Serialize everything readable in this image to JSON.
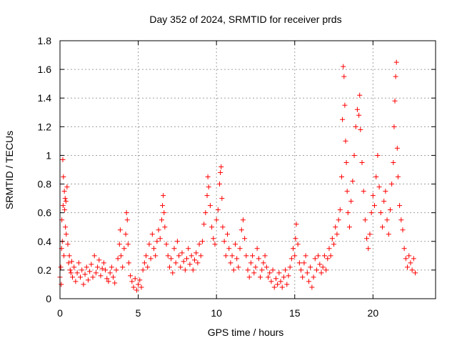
{
  "chart_data": {
    "type": "scatter",
    "title": "Day 352 of 2024, SRMTID for receiver prds",
    "xlabel": "GPS time / hours",
    "ylabel": "SRMTID / TECUs",
    "xlim": [
      0,
      24
    ],
    "ylim": [
      0,
      1.8
    ],
    "xticks": [
      0,
      5,
      10,
      15,
      20
    ],
    "xtick_labels": [
      "0",
      "5",
      "10",
      "15",
      "20"
    ],
    "yticks": [
      0,
      0.2,
      0.4,
      0.6,
      0.8,
      1.0,
      1.2,
      1.4,
      1.6,
      1.8
    ],
    "ytick_labels": [
      "0",
      "0.2",
      "0.4",
      "0.6",
      "0.8",
      "1",
      "1.2",
      "1.4",
      "1.6",
      "1.8"
    ],
    "grid": true,
    "marker": "+",
    "color": "#ff0000",
    "series": [
      {
        "name": "SRMTID",
        "points": [
          [
            0.0,
            0.15
          ],
          [
            0.05,
            0.22
          ],
          [
            0.08,
            0.1
          ],
          [
            0.1,
            0.35
          ],
          [
            0.12,
            0.55
          ],
          [
            0.15,
            0.4
          ],
          [
            0.18,
            0.97
          ],
          [
            0.2,
            0.65
          ],
          [
            0.22,
            0.85
          ],
          [
            0.25,
            0.3
          ],
          [
            0.28,
            0.75
          ],
          [
            0.3,
            0.62
          ],
          [
            0.33,
            0.7
          ],
          [
            0.35,
            0.5
          ],
          [
            0.38,
            0.68
          ],
          [
            0.4,
            0.45
          ],
          [
            0.45,
            0.78
          ],
          [
            0.5,
            0.38
          ],
          [
            0.55,
            0.25
          ],
          [
            0.6,
            0.3
          ],
          [
            0.65,
            0.2
          ],
          [
            0.7,
            0.18
          ],
          [
            0.75,
            0.26
          ],
          [
            0.8,
            0.15
          ],
          [
            0.9,
            0.22
          ],
          [
            1.0,
            0.12
          ],
          [
            1.1,
            0.18
          ],
          [
            1.2,
            0.25
          ],
          [
            1.3,
            0.15
          ],
          [
            1.4,
            0.2
          ],
          [
            1.5,
            0.1
          ],
          [
            1.6,
            0.17
          ],
          [
            1.7,
            0.22
          ],
          [
            1.8,
            0.13
          ],
          [
            1.9,
            0.19
          ],
          [
            2.0,
            0.24
          ],
          [
            2.1,
            0.15
          ],
          [
            2.2,
            0.3
          ],
          [
            2.3,
            0.18
          ],
          [
            2.4,
            0.22
          ],
          [
            2.5,
            0.27
          ],
          [
            2.6,
            0.16
          ],
          [
            2.7,
            0.21
          ],
          [
            2.8,
            0.25
          ],
          [
            2.9,
            0.2
          ],
          [
            3.0,
            0.14
          ],
          [
            3.1,
            0.12
          ],
          [
            3.2,
            0.18
          ],
          [
            3.3,
            0.22
          ],
          [
            3.4,
            0.15
          ],
          [
            3.5,
            0.11
          ],
          [
            3.6,
            0.2
          ],
          [
            3.7,
            0.28
          ],
          [
            3.8,
            0.38
          ],
          [
            3.85,
            0.48
          ],
          [
            3.9,
            0.3
          ],
          [
            4.0,
            0.22
          ],
          [
            4.1,
            0.35
          ],
          [
            4.2,
            0.45
          ],
          [
            4.25,
            0.6
          ],
          [
            4.3,
            0.55
          ],
          [
            4.35,
            0.38
          ],
          [
            4.4,
            0.25
          ],
          [
            4.5,
            0.16
          ],
          [
            4.6,
            0.12
          ],
          [
            4.7,
            0.08
          ],
          [
            4.8,
            0.14
          ],
          [
            4.9,
            0.06
          ],
          [
            5.0,
            0.1
          ],
          [
            5.1,
            0.13
          ],
          [
            5.2,
            0.08
          ],
          [
            5.3,
            0.2
          ],
          [
            5.4,
            0.25
          ],
          [
            5.5,
            0.3
          ],
          [
            5.6,
            0.22
          ],
          [
            5.7,
            0.38
          ],
          [
            5.8,
            0.28
          ],
          [
            5.9,
            0.45
          ],
          [
            6.0,
            0.35
          ],
          [
            6.1,
            0.3
          ],
          [
            6.2,
            0.4
          ],
          [
            6.3,
            0.48
          ],
          [
            6.4,
            0.42
          ],
          [
            6.5,
            0.55
          ],
          [
            6.55,
            0.65
          ],
          [
            6.6,
            0.72
          ],
          [
            6.65,
            0.6
          ],
          [
            6.7,
            0.5
          ],
          [
            6.8,
            0.38
          ],
          [
            6.9,
            0.3
          ],
          [
            7.0,
            0.22
          ],
          [
            7.1,
            0.28
          ],
          [
            7.2,
            0.18
          ],
          [
            7.3,
            0.35
          ],
          [
            7.4,
            0.25
          ],
          [
            7.5,
            0.4
          ],
          [
            7.6,
            0.3
          ],
          [
            7.7,
            0.22
          ],
          [
            7.8,
            0.32
          ],
          [
            7.9,
            0.26
          ],
          [
            8.0,
            0.2
          ],
          [
            8.1,
            0.28
          ],
          [
            8.2,
            0.35
          ],
          [
            8.3,
            0.24
          ],
          [
            8.4,
            0.3
          ],
          [
            8.5,
            0.2
          ],
          [
            8.6,
            0.27
          ],
          [
            8.7,
            0.32
          ],
          [
            8.8,
            0.25
          ],
          [
            8.9,
            0.38
          ],
          [
            9.0,
            0.3
          ],
          [
            9.1,
            0.4
          ],
          [
            9.2,
            0.52
          ],
          [
            9.3,
            0.6
          ],
          [
            9.4,
            0.72
          ],
          [
            9.45,
            0.85
          ],
          [
            9.5,
            0.78
          ],
          [
            9.6,
            0.65
          ],
          [
            9.7,
            0.5
          ],
          [
            9.8,
            0.42
          ],
          [
            9.9,
            0.38
          ],
          [
            10.0,
            0.55
          ],
          [
            10.1,
            0.62
          ],
          [
            10.2,
            0.8
          ],
          [
            10.25,
            0.88
          ],
          [
            10.3,
            0.92
          ],
          [
            10.35,
            0.7
          ],
          [
            10.4,
            0.5
          ],
          [
            10.5,
            0.4
          ],
          [
            10.6,
            0.3
          ],
          [
            10.7,
            0.45
          ],
          [
            10.8,
            0.35
          ],
          [
            10.9,
            0.25
          ],
          [
            11.0,
            0.3
          ],
          [
            11.1,
            0.2
          ],
          [
            11.2,
            0.38
          ],
          [
            11.3,
            0.28
          ],
          [
            11.4,
            0.22
          ],
          [
            11.5,
            0.35
          ],
          [
            11.6,
            0.48
          ],
          [
            11.7,
            0.55
          ],
          [
            11.8,
            0.42
          ],
          [
            11.9,
            0.3
          ],
          [
            12.0,
            0.2
          ],
          [
            12.1,
            0.15
          ],
          [
            12.2,
            0.25
          ],
          [
            12.3,
            0.3
          ],
          [
            12.4,
            0.18
          ],
          [
            12.5,
            0.22
          ],
          [
            12.6,
            0.35
          ],
          [
            12.7,
            0.28
          ],
          [
            12.8,
            0.15
          ],
          [
            12.9,
            0.2
          ],
          [
            13.0,
            0.25
          ],
          [
            13.1,
            0.3
          ],
          [
            13.2,
            0.22
          ],
          [
            13.3,
            0.15
          ],
          [
            13.4,
            0.18
          ],
          [
            13.5,
            0.12
          ],
          [
            13.6,
            0.2
          ],
          [
            13.7,
            0.08
          ],
          [
            13.8,
            0.14
          ],
          [
            13.9,
            0.1
          ],
          [
            14.0,
            0.18
          ],
          [
            14.1,
            0.12
          ],
          [
            14.2,
            0.08
          ],
          [
            14.3,
            0.15
          ],
          [
            14.4,
            0.2
          ],
          [
            14.5,
            0.1
          ],
          [
            14.6,
            0.16
          ],
          [
            14.7,
            0.22
          ],
          [
            14.8,
            0.28
          ],
          [
            14.9,
            0.35
          ],
          [
            15.0,
            0.3
          ],
          [
            15.05,
            0.42
          ],
          [
            15.1,
            0.52
          ],
          [
            15.2,
            0.38
          ],
          [
            15.3,
            0.25
          ],
          [
            15.4,
            0.2
          ],
          [
            15.5,
            0.15
          ],
          [
            15.6,
            0.25
          ],
          [
            15.7,
            0.3
          ],
          [
            15.8,
            0.18
          ],
          [
            15.9,
            0.12
          ],
          [
            16.0,
            0.22
          ],
          [
            16.1,
            0.08
          ],
          [
            16.2,
            0.15
          ],
          [
            16.3,
            0.28
          ],
          [
            16.4,
            0.2
          ],
          [
            16.5,
            0.3
          ],
          [
            16.6,
            0.24
          ],
          [
            16.7,
            0.18
          ],
          [
            16.8,
            0.22
          ],
          [
            16.9,
            0.3
          ],
          [
            17.0,
            0.2
          ],
          [
            17.1,
            0.28
          ],
          [
            17.2,
            0.35
          ],
          [
            17.3,
            0.3
          ],
          [
            17.4,
            0.42
          ],
          [
            17.5,
            0.38
          ],
          [
            17.6,
            0.5
          ],
          [
            17.7,
            0.45
          ],
          [
            17.8,
            0.55
          ],
          [
            17.9,
            0.62
          ],
          [
            18.0,
            0.85
          ],
          [
            18.05,
            1.25
          ],
          [
            18.1,
            1.62
          ],
          [
            18.15,
            1.55
          ],
          [
            18.2,
            1.35
          ],
          [
            18.25,
            1.1
          ],
          [
            18.3,
            0.95
          ],
          [
            18.35,
            0.75
          ],
          [
            18.4,
            0.6
          ],
          [
            18.5,
            0.5
          ],
          [
            18.6,
            0.68
          ],
          [
            18.7,
            0.82
          ],
          [
            18.8,
            1.0
          ],
          [
            18.9,
            1.2
          ],
          [
            19.0,
            1.32
          ],
          [
            19.1,
            1.28
          ],
          [
            19.15,
            1.42
          ],
          [
            19.2,
            1.18
          ],
          [
            19.3,
            0.95
          ],
          [
            19.4,
            0.75
          ],
          [
            19.5,
            0.55
          ],
          [
            19.6,
            0.42
          ],
          [
            19.7,
            0.35
          ],
          [
            19.8,
            0.45
          ],
          [
            19.9,
            0.6
          ],
          [
            20.0,
            0.72
          ],
          [
            20.1,
            0.65
          ],
          [
            20.2,
            0.85
          ],
          [
            20.3,
            1.0
          ],
          [
            20.4,
            0.78
          ],
          [
            20.5,
            0.6
          ],
          [
            20.6,
            0.5
          ],
          [
            20.7,
            0.68
          ],
          [
            20.8,
            0.75
          ],
          [
            20.9,
            0.55
          ],
          [
            21.0,
            0.45
          ],
          [
            21.1,
            0.62
          ],
          [
            21.2,
            0.8
          ],
          [
            21.3,
            0.95
          ],
          [
            21.35,
            1.2
          ],
          [
            21.4,
            1.38
          ],
          [
            21.45,
            1.55
          ],
          [
            21.5,
            1.65
          ],
          [
            21.55,
            1.05
          ],
          [
            21.6,
            0.85
          ],
          [
            21.7,
            0.65
          ],
          [
            21.8,
            0.55
          ],
          [
            21.9,
            0.48
          ],
          [
            22.0,
            0.35
          ],
          [
            22.1,
            0.28
          ],
          [
            22.2,
            0.22
          ],
          [
            22.3,
            0.3
          ],
          [
            22.4,
            0.25
          ],
          [
            22.5,
            0.2
          ],
          [
            22.6,
            0.28
          ],
          [
            22.7,
            0.18
          ]
        ]
      }
    ]
  }
}
